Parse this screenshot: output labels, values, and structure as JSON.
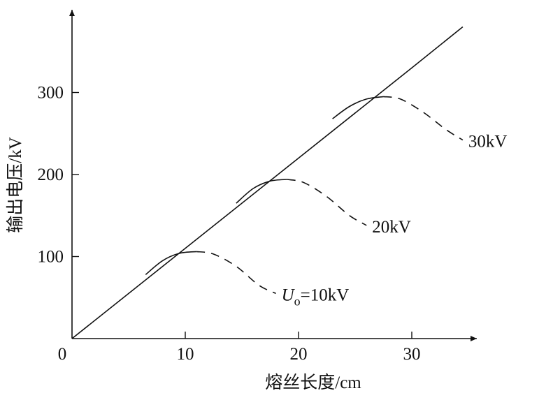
{
  "chart_data": {
    "type": "line",
    "title": "",
    "xlabel": "熔丝长度/cm",
    "ylabel": "输出电压/kV",
    "xlim": [
      0,
      35
    ],
    "ylim": [
      0,
      390
    ],
    "x_ticks": [
      "0",
      "10",
      "20",
      "30"
    ],
    "y_ticks": [
      "100",
      "200",
      "300"
    ],
    "grid": false,
    "series": [
      {
        "style": "solid",
        "x": [
          0,
          10,
          20,
          30,
          34.5
        ],
        "y": [
          0,
          110,
          220,
          330,
          380
        ]
      },
      {
        "name": "U_o=10kV",
        "style": "solid-then-dashed",
        "x": [
          6.5,
          8,
          9.5,
          11,
          12.5,
          14.5,
          16.5,
          18
        ],
        "y": [
          78,
          95,
          104,
          106,
          103,
          88,
          65,
          55
        ]
      },
      {
        "name": "20kV",
        "style": "solid-then-dashed",
        "x": [
          14.5,
          16,
          17.5,
          19,
          20.5,
          22.5,
          24.5,
          26
        ],
        "y": [
          165,
          183,
          192,
          194,
          190,
          173,
          150,
          138
        ]
      },
      {
        "name": "30kV",
        "style": "solid-then-dashed",
        "x": [
          23,
          24.5,
          26,
          27.5,
          29,
          31,
          33,
          34.5
        ],
        "y": [
          268,
          283,
          292,
          295,
          292,
          276,
          255,
          242
        ]
      }
    ],
    "annotations": [
      {
        "series": "U_o=10kV",
        "main": "U",
        "sub": "o",
        "rest": "=10kV"
      },
      {
        "series": "20kV",
        "text": "20kV"
      },
      {
        "series": "30kV",
        "text": "30kV"
      }
    ]
  }
}
